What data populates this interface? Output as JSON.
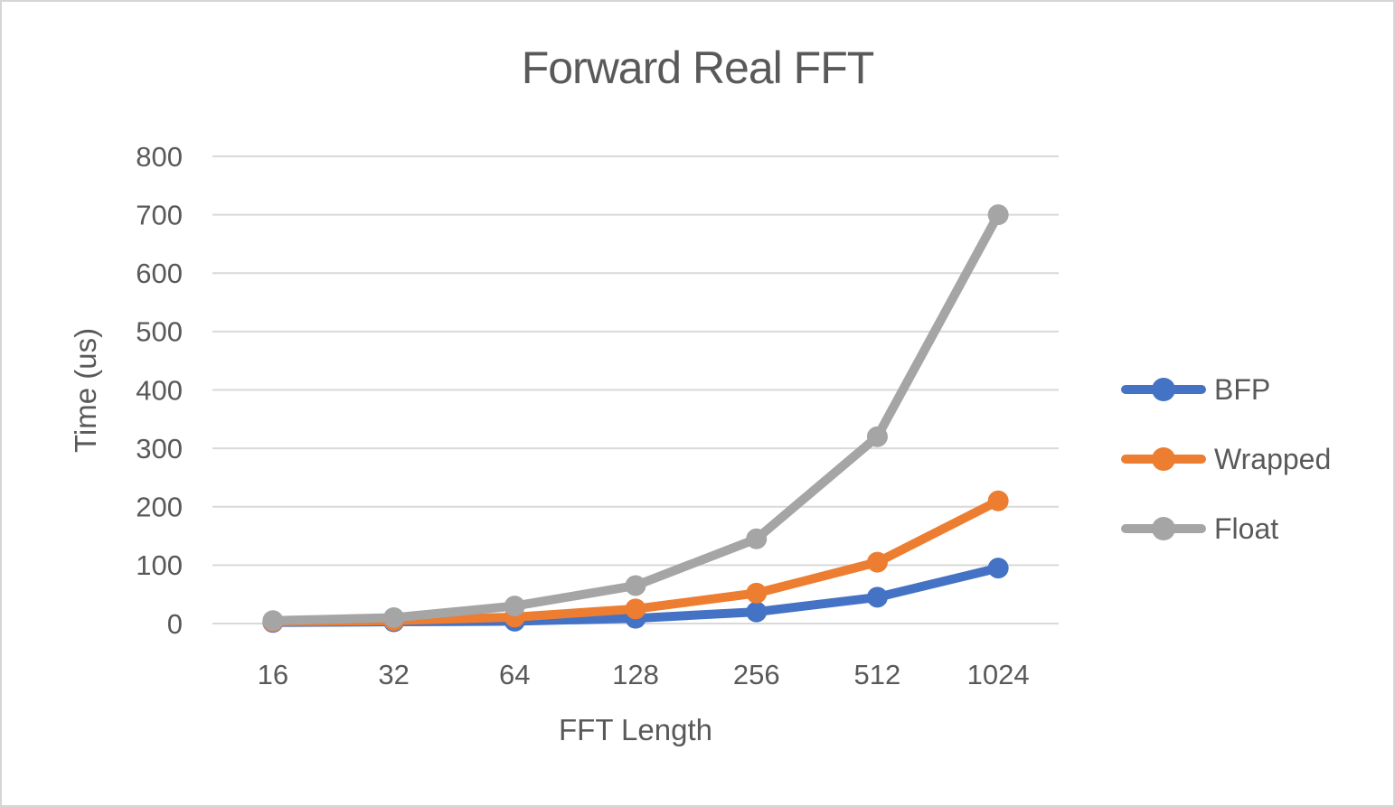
{
  "chart_data": {
    "type": "line",
    "title": "Forward Real FFT",
    "xlabel": "FFT Length",
    "ylabel": "Time (us)",
    "categories": [
      "16",
      "32",
      "64",
      "128",
      "256",
      "512",
      "1024"
    ],
    "y_ticks": [
      0,
      100,
      200,
      300,
      400,
      500,
      600,
      700,
      800
    ],
    "ylim": [
      0,
      800
    ],
    "grid": true,
    "legend_position": "right",
    "series": [
      {
        "name": "BFP",
        "color": "#4472C4",
        "values": [
          2,
          3,
          4,
          9,
          20,
          45,
          95
        ]
      },
      {
        "name": "Wrapped",
        "color": "#ED7D31",
        "values": [
          3,
          5,
          11,
          25,
          52,
          105,
          210
        ]
      },
      {
        "name": "Float",
        "color": "#A5A5A5",
        "values": [
          5,
          10,
          30,
          65,
          145,
          320,
          700
        ]
      }
    ],
    "colors": {
      "gridline": "#D9D9D9",
      "text": "#595959",
      "background": "#FFFFFF",
      "frame_border": "#D5D5D5"
    }
  }
}
